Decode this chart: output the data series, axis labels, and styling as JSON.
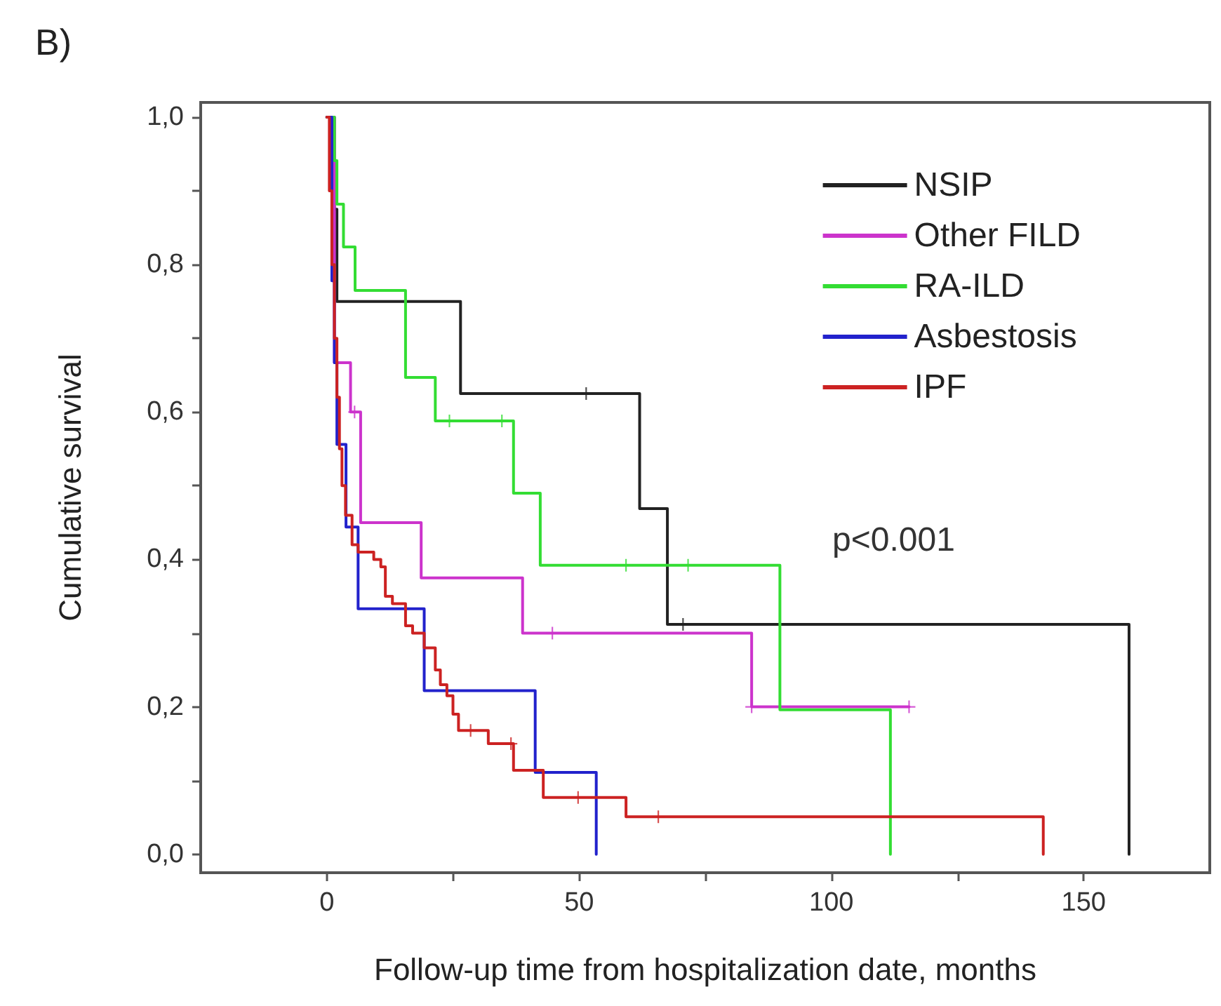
{
  "chart_data": {
    "type": "step",
    "title": "B)",
    "xlabel": "Follow-up time from hospitalization date, months",
    "ylabel": "Cumulative survival",
    "annotations": [
      "p<0.001"
    ],
    "xlim": [
      -25,
      175
    ],
    "xticks": [
      0,
      {
        "value": 25,
        "label": null
      },
      50,
      {
        "value": 75,
        "label": null
      },
      100,
      {
        "value": 125,
        "label": null
      },
      150
    ],
    "ylim": [
      -0.025,
      1.02
    ],
    "yticks": [
      {
        "value": 0,
        "label": "0,0"
      },
      {
        "value": 0.1,
        "label": null
      },
      {
        "value": 0.2,
        "label": "0,2"
      },
      {
        "value": 0.3,
        "label": null
      },
      {
        "value": 0.4,
        "label": "0,4"
      },
      {
        "value": 0.5,
        "label": null
      },
      {
        "value": 0.6,
        "label": "0,6"
      },
      {
        "value": 0.7,
        "label": null
      },
      {
        "value": 0.8,
        "label": "0,8"
      },
      {
        "value": 0.9,
        "label": null
      },
      {
        "value": 1.0,
        "label": "1,0"
      }
    ],
    "grid": false,
    "legend": "top right",
    "marker": "none",
    "line_style": "solid",
    "series": [
      {
        "name": "NSIP",
        "color": "#222222",
        "x": [
          0,
          1.5,
          2,
          26.5,
          62,
          67.5,
          159
        ],
        "values": [
          1,
          0.875,
          0.75,
          0.625,
          0.469,
          0.312,
          0
        ]
      },
      {
        "name": "Other FILD",
        "color": "#cc33cc",
        "x": [
          0,
          1.5,
          4.7,
          6.7,
          18.7,
          38.8,
          84.2,
          115.4
        ],
        "values": [
          1,
          0.667,
          0.6,
          0.45,
          0.375,
          0.3,
          0.2,
          0.2
        ]
      },
      {
        "name": "RA-ILD",
        "color": "#33dd33",
        "x": [
          0,
          1.5,
          2,
          3.3,
          5.6,
          15.6,
          21.5,
          37,
          42.3,
          89.8,
          111.7
        ],
        "values": [
          1,
          0.941,
          0.882,
          0.824,
          0.765,
          0.647,
          0.588,
          0.49,
          0.392,
          0.196,
          0
        ]
      },
      {
        "name": "Asbestosis",
        "color": "#2222cc",
        "x": [
          0,
          1,
          1.5,
          2,
          3.8,
          6.2,
          19.3,
          41.3,
          53.4
        ],
        "values": [
          1,
          0.778,
          0.667,
          0.556,
          0.444,
          0.333,
          0.222,
          0.111,
          0
        ]
      },
      {
        "name": "IPF",
        "color": "#cc2222",
        "x": [
          0,
          0.5,
          1,
          1.5,
          2,
          2.5,
          3,
          3.7,
          5,
          6.2,
          9.3,
          10.7,
          11.6,
          13,
          15.6,
          17,
          19.3,
          21.5,
          22.5,
          23.8,
          25,
          26.1,
          32,
          37,
          42.9,
          59.3,
          142
        ],
        "values": [
          1,
          0.9,
          0.8,
          0.7,
          0.62,
          0.55,
          0.5,
          0.46,
          0.42,
          0.41,
          0.4,
          0.39,
          0.35,
          0.34,
          0.31,
          0.3,
          0.28,
          0.25,
          0.23,
          0.215,
          0.19,
          0.168,
          0.15,
          0.114,
          0.077,
          0.051,
          0
        ]
      },
      {
        "type": "scatter",
        "marker": "cross",
        "color": "#222222",
        "x": [
          51.4,
          70.6
        ],
        "values": [
          0.625,
          0.312
        ]
      },
      {
        "type": "scatter",
        "marker": "cross",
        "color": "#cc33cc",
        "x": [
          5.5,
          44.7,
          84.2,
          115.4
        ],
        "values": [
          0.6,
          0.3,
          0.2,
          0.2
        ]
      },
      {
        "type": "scatter",
        "marker": "cross",
        "color": "#33dd33",
        "x": [
          24.3,
          34.7,
          59.3,
          71.6
        ],
        "values": [
          0.588,
          0.588,
          0.392,
          0.392
        ]
      },
      {
        "type": "scatter",
        "marker": "cross",
        "color": "#cc2222",
        "x": [
          28.5,
          36.5,
          49.8,
          65.7
        ],
        "values": [
          0.168,
          0.15,
          0.077,
          0.051
        ]
      }
    ]
  }
}
